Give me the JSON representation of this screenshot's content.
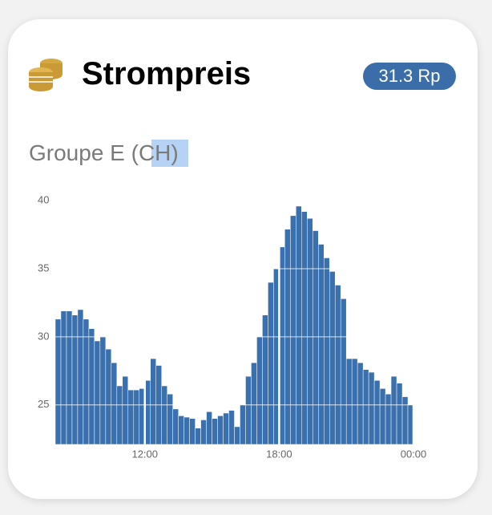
{
  "header": {
    "title": "Strompreis",
    "badge": "31.3 Rp"
  },
  "chart_data": {
    "type": "bar",
    "title": "Groupe E (CH)",
    "color": "#3a70ad",
    "grid": true,
    "x": [
      8,
      8.25,
      8.5,
      8.75,
      9,
      9.25,
      9.5,
      9.75,
      10,
      10.25,
      10.5,
      10.75,
      11,
      11.25,
      11.5,
      11.75,
      12,
      12.25,
      12.5,
      12.75,
      13,
      13.25,
      13.5,
      13.75,
      14,
      14.25,
      14.5,
      14.75,
      15,
      15.25,
      15.5,
      15.75,
      16,
      16.25,
      16.5,
      16.75,
      17,
      17.25,
      17.5,
      17.75,
      18,
      18.25,
      18.5,
      18.75,
      19,
      19.25,
      19.5,
      19.75,
      20,
      20.25,
      20.5,
      20.75,
      21,
      21.25,
      21.5,
      21.75,
      22,
      22.25,
      22.5,
      22.75,
      23,
      23.25,
      23.5,
      23.75
    ],
    "values": [
      31.3,
      31.9,
      31.9,
      31.6,
      32.0,
      31.3,
      30.6,
      29.7,
      30.0,
      29.1,
      28.1,
      26.4,
      27.1,
      26.1,
      26.1,
      26.2,
      26.8,
      28.4,
      27.9,
      26.4,
      25.8,
      24.7,
      24.2,
      24.1,
      24.0,
      23.3,
      23.9,
      24.5,
      24.0,
      24.2,
      24.4,
      24.6,
      23.4,
      25.0,
      27.1,
      28.1,
      30.0,
      31.6,
      34.0,
      35.0,
      36.6,
      37.9,
      38.9,
      39.6,
      39.2,
      38.7,
      37.8,
      36.8,
      35.8,
      34.8,
      33.8,
      32.8,
      28.4,
      28.4,
      28.1,
      27.6,
      27.4,
      26.8,
      26.2,
      25.8,
      27.1,
      26.6,
      25.6,
      25.0
    ],
    "xlim": [
      8,
      24
    ],
    "xticks": [
      {
        "value": 12,
        "label": "12:00"
      },
      {
        "value": 18,
        "label": "18:00"
      },
      {
        "value": 24,
        "label": "00:00"
      }
    ],
    "ylim": [
      22.1,
      40.6
    ],
    "yticks": [
      25,
      30,
      35,
      40
    ]
  }
}
